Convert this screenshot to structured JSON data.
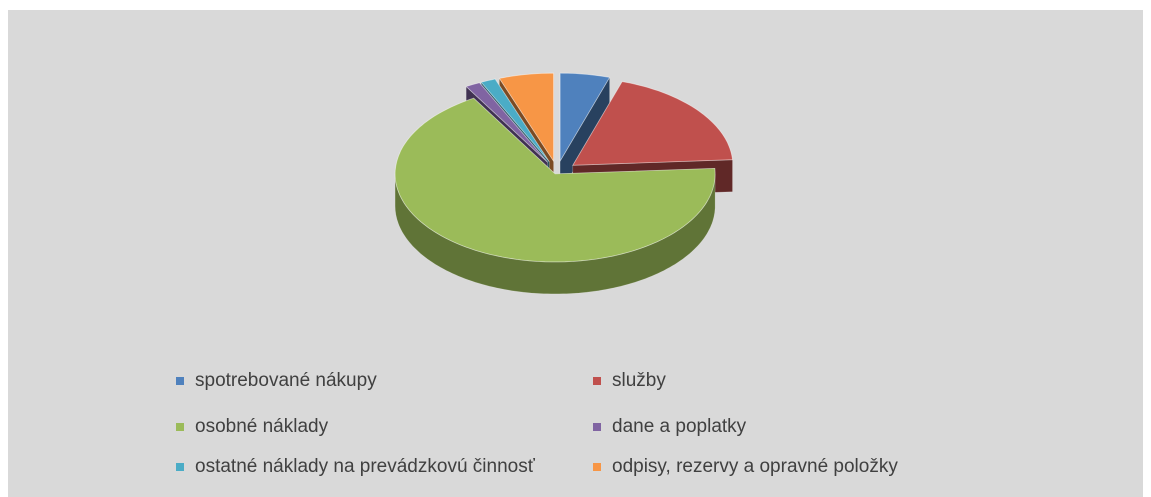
{
  "chart_data": {
    "type": "pie",
    "categories": [
      "spotrebované nákupy",
      "služby",
      "osobné náklady",
      "dane a poplatky",
      "ostatné náklady na prevádzkovú činnosť",
      "odpisy, rezervy a opravné položky"
    ],
    "values": [
      5,
      19,
      67.5,
      1.5,
      1.5,
      5.5
    ],
    "colors": [
      "#4f81bd",
      "#c0504d",
      "#9bbb59",
      "#8064a2",
      "#4bacc6",
      "#f79646"
    ]
  }
}
